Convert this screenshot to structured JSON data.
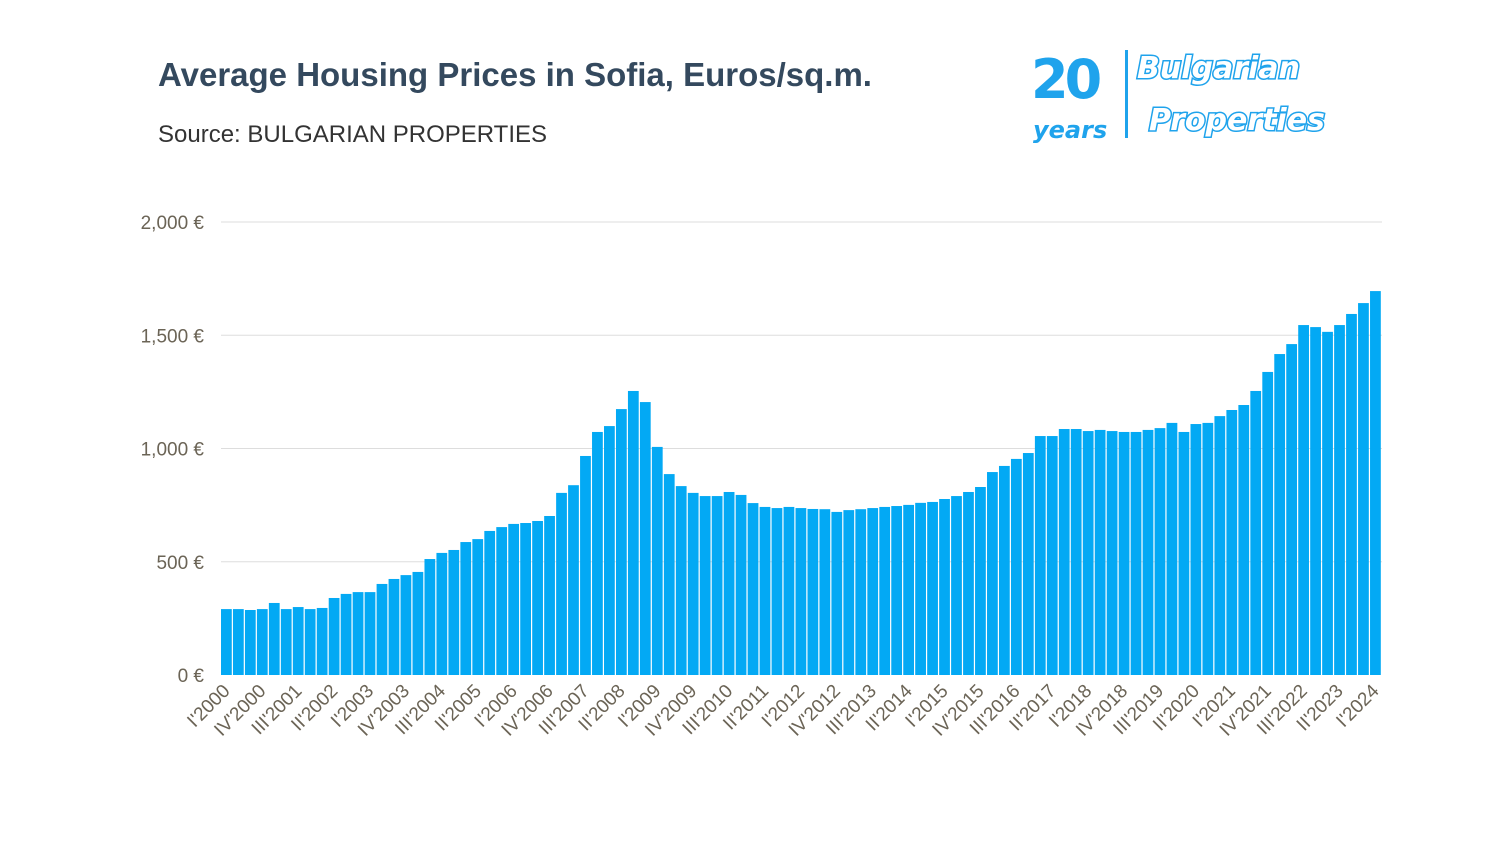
{
  "title": "Average Housing Prices in Sofia, Euros/sq.m.",
  "subtitle": "Source: BULGARIAN PROPERTIES",
  "logo": {
    "line1": "20",
    "line2": "years",
    "brand1": "Bulgarian",
    "brand2": "Properties",
    "color": "#1fa3ec"
  },
  "chart_data": {
    "type": "bar",
    "title": "Average Housing Prices in Sofia, Euros/sq.m.",
    "xlabel": "",
    "ylabel": "",
    "ylim": [
      0,
      2000
    ],
    "yticks": [
      0,
      500,
      1000,
      1500,
      2000
    ],
    "ytick_labels": [
      "0 €",
      "500 €",
      "1,000 €",
      "1,500 €",
      "2,000 €"
    ],
    "grid": "horizontal",
    "bar_color": "#03a9f4",
    "categories": [
      "I'2000",
      "II'2000",
      "III'2000",
      "IV'2000",
      "I'2001",
      "II'2001",
      "III'2001",
      "IV'2001",
      "I'2002",
      "II'2002",
      "III'2002",
      "IV'2002",
      "I'2003",
      "II'2003",
      "III'2003",
      "IV'2003",
      "I'2004",
      "II'2004",
      "III'2004",
      "IV'2004",
      "I'2005",
      "II'2005",
      "III'2005",
      "IV'2005",
      "I'2006",
      "II'2006",
      "III'2006",
      "IV'2006",
      "I'2007",
      "II'2007",
      "III'2007",
      "IV'2007",
      "I'2008",
      "II'2008",
      "III'2008",
      "IV'2008",
      "I'2009",
      "II'2009",
      "III'2009",
      "IV'2009",
      "I'2010",
      "II'2010",
      "III'2010",
      "IV'2010",
      "I'2011",
      "II'2011",
      "III'2011",
      "IV'2011",
      "I'2012",
      "II'2012",
      "III'2012",
      "IV'2012",
      "I'2013",
      "II'2013",
      "III'2013",
      "IV'2013",
      "I'2014",
      "II'2014",
      "III'2014",
      "IV'2014",
      "I'2015",
      "II'2015",
      "III'2015",
      "IV'2015",
      "I'2016",
      "II'2016",
      "III'2016",
      "IV'2016",
      "I'2017",
      "II'2017",
      "III'2017",
      "IV'2017",
      "I'2018",
      "II'2018",
      "III'2018",
      "IV'2018",
      "I'2019",
      "II'2019",
      "III'2019",
      "IV'2019",
      "I'2020",
      "II'2020",
      "III'2020",
      "IV'2020",
      "I'2021",
      "II'2021",
      "III'2021",
      "IV'2021",
      "I'2022",
      "II'2022",
      "III'2022",
      "IV'2022",
      "I'2023",
      "II'2023",
      "III'2023",
      "IV'2023",
      "I'2024"
    ],
    "xtick_labels": [
      "I'2000",
      "IV'2000",
      "III'2001",
      "II'2002",
      "I'2003",
      "IV'2003",
      "III'2004",
      "II'2005",
      "I'2006",
      "IV'2006",
      "III'2007",
      "II'2008",
      "I'2009",
      "IV'2009",
      "III'2010",
      "II'2011",
      "I'2012",
      "IV'2012",
      "III'2013",
      "II'2014",
      "I'2015",
      "IV'2015",
      "III'2016",
      "II'2017",
      "I'2018",
      "IV'2018",
      "III'2019",
      "II'2020",
      "I'2021",
      "IV'2021",
      "III'2022",
      "II'2023",
      "I'2024"
    ],
    "values": [
      291,
      291,
      287,
      291,
      318,
      291,
      300,
      291,
      296,
      340,
      358,
      366,
      366,
      402,
      424,
      441,
      455,
      512,
      539,
      552,
      587,
      600,
      636,
      653,
      667,
      671,
      680,
      702,
      804,
      838,
      967,
      1073,
      1099,
      1174,
      1254,
      1205,
      1007,
      887,
      834,
      804,
      790,
      790,
      808,
      795,
      759,
      742,
      737,
      742,
      737,
      733,
      732,
      720,
      728,
      732,
      737,
      742,
      746,
      751,
      760,
      764,
      777,
      790,
      808,
      830,
      896,
      923,
      954,
      980,
      1055,
      1055,
      1086,
      1086,
      1077,
      1082,
      1077,
      1073,
      1073,
      1082,
      1090,
      1113,
      1073,
      1108,
      1113,
      1143,
      1170,
      1192,
      1254,
      1338,
      1417,
      1461,
      1545,
      1536,
      1515,
      1545,
      1594,
      1642,
      1695
    ]
  }
}
